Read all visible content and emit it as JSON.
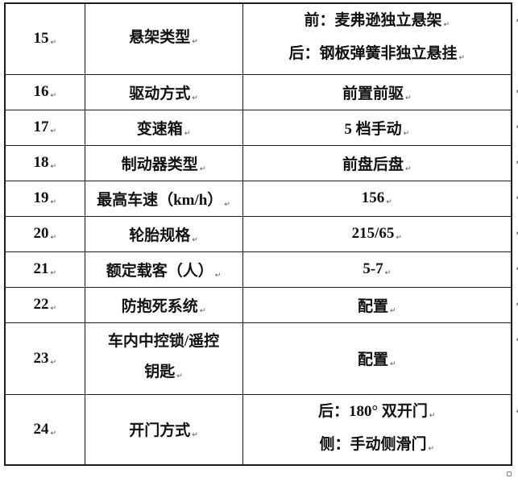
{
  "marks": {
    "para": "↵"
  },
  "table": {
    "rows": [
      {
        "num": "15",
        "label_lines": [
          "悬架类型"
        ],
        "value_lines": [
          "前：麦弗逊独立悬架",
          "后：钢板弹簧非独立悬挂"
        ]
      },
      {
        "num": "16",
        "label_lines": [
          "驱动方式"
        ],
        "value_lines": [
          "前置前驱"
        ]
      },
      {
        "num": "17",
        "label_lines": [
          "变速箱"
        ],
        "value_lines": [
          "5 档手动"
        ]
      },
      {
        "num": "18",
        "label_lines": [
          "制动器类型"
        ],
        "value_lines": [
          "前盘后盘"
        ]
      },
      {
        "num": "19",
        "label_lines": [
          "最高车速（km/h）"
        ],
        "value_lines": [
          "156"
        ]
      },
      {
        "num": "20",
        "label_lines": [
          "轮胎规格"
        ],
        "value_lines": [
          "215/65"
        ]
      },
      {
        "num": "21",
        "label_lines": [
          "额定载客（人）"
        ],
        "value_lines": [
          "5-7"
        ]
      },
      {
        "num": "22",
        "label_lines": [
          "防抱死系统"
        ],
        "value_lines": [
          "配置"
        ]
      },
      {
        "num": "23",
        "label_lines": [
          "车内中控锁/遥控",
          "钥匙"
        ],
        "value_lines": [
          "配置"
        ]
      },
      {
        "num": "24",
        "label_lines": [
          "开门方式"
        ],
        "value_lines": [
          "后：180° 双开门",
          "侧：手动侧滑门"
        ]
      }
    ]
  },
  "colors": {
    "border": "#1b1b1b",
    "text": "#111111",
    "background": "#ffffff"
  }
}
